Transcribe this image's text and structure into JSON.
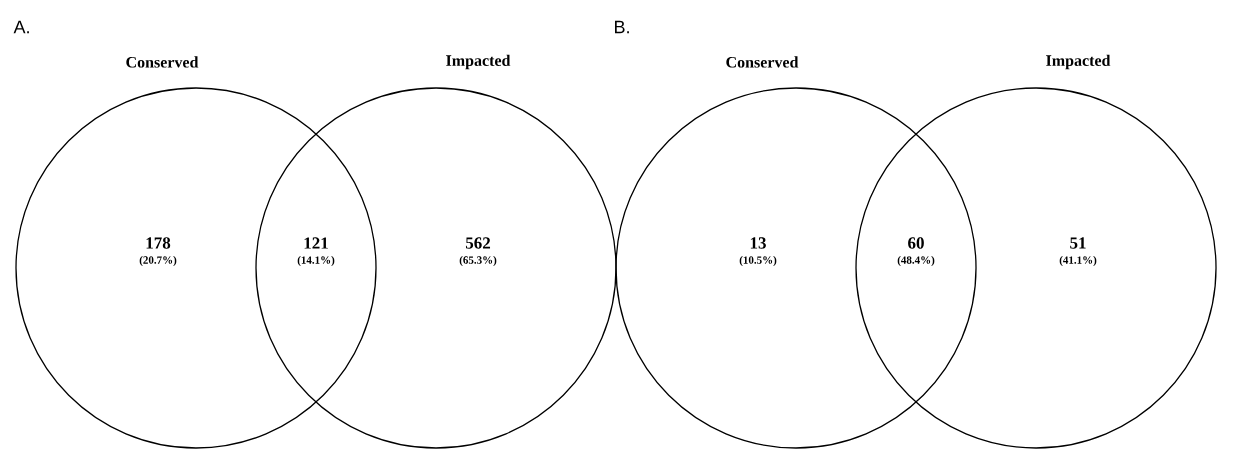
{
  "chart_data": [
    {
      "type": "other",
      "title": "A.",
      "annotations": [
        "Conserved",
        "Impacted",
        "(20.7%)",
        "(14.1%)",
        "(65.3%)"
      ],
      "categories": [
        null,
        null,
        null
      ],
      "values": [
        178,
        121,
        562
      ],
      "data_labels": true
    },
    {
      "type": "other",
      "title": "B.",
      "annotations": [
        "Conserved",
        "Impacted",
        "(10.5%)",
        "(48.4%)",
        "(41.1%)"
      ],
      "categories": [
        null,
        null,
        null
      ],
      "values": [
        13,
        60,
        51
      ],
      "data_labels": true
    }
  ]
}
